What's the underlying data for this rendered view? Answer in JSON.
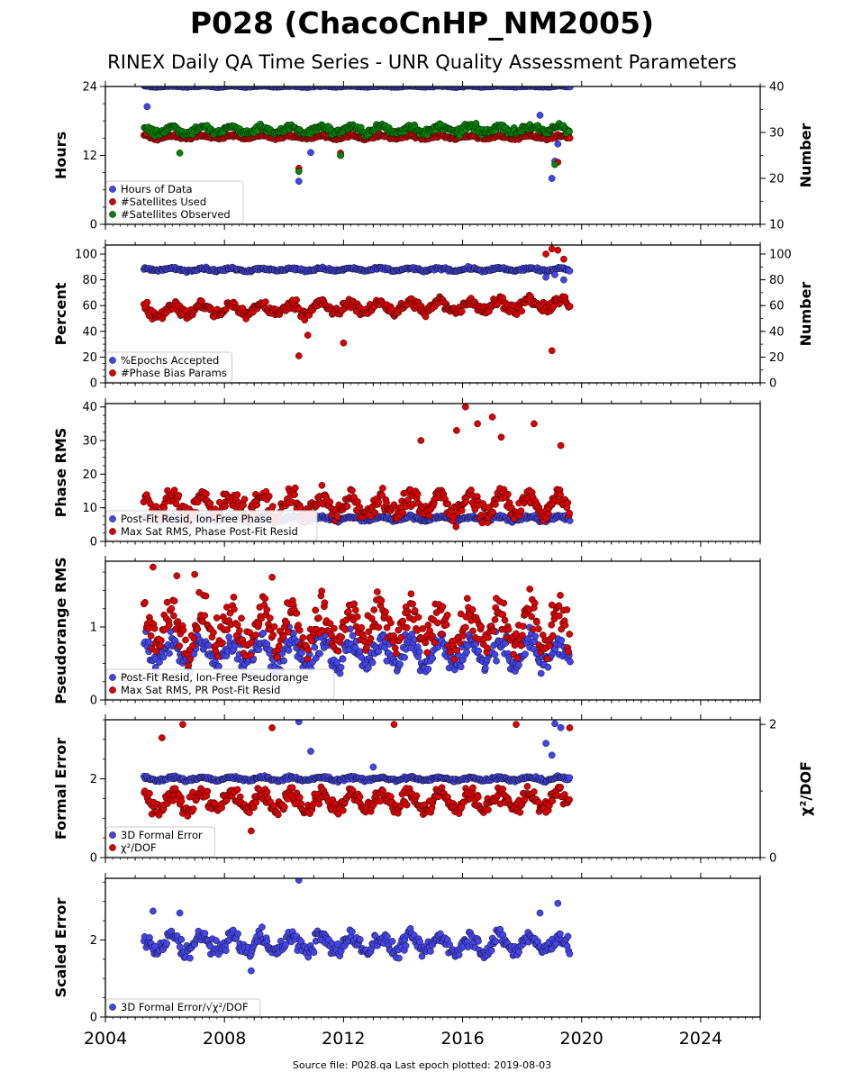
{
  "title": "P028 (ChacoCnHP_NM2005)",
  "subtitle": "RINEX Daily QA Time Series - UNR Quality Assessment Parameters",
  "footer": "Source file: P028.qa Last epoch plotted: 2019-08-03",
  "chart_data": {
    "type": "scatter",
    "x_axis": {
      "range": [
        2004,
        2026
      ],
      "ticks": [
        2004,
        2008,
        2012,
        2016,
        2020,
        2024
      ],
      "unit": "year"
    },
    "data_span": [
      2005.3,
      2019.6
    ],
    "panels": [
      {
        "ylabel": "Hours",
        "yrange": [
          0,
          24
        ],
        "yticks": [
          0,
          12,
          24
        ],
        "ylabel_right": "Number",
        "yrange_right": [
          10,
          40
        ],
        "yticks_right": [
          10,
          20,
          30,
          40
        ],
        "legend": [
          "Hours of Data",
          "#Satellites Used",
          "#Satellites Observed"
        ],
        "series": [
          {
            "name": "Hours of Data",
            "color": "#4444ee",
            "axis": "left",
            "typical": 24,
            "spread": 0.1,
            "trend": 0,
            "outliers": [
              [
                2005.4,
                20.5
              ],
              [
                2010.5,
                7.5
              ],
              [
                2010.9,
                12.5
              ],
              [
                2011.9,
                12
              ],
              [
                2018.6,
                19
              ],
              [
                2019.0,
                8
              ],
              [
                2019.1,
                11
              ],
              [
                2019.3,
                17
              ],
              [
                2019.2,
                14
              ]
            ]
          },
          {
            "name": "#Satellites Used",
            "color": "#dd0000",
            "axis": "right",
            "typical": 29,
            "spread": 0.4,
            "trend": 0,
            "outliers": [
              [
                2005.4,
                29.8
              ],
              [
                2010.5,
                22.2
              ],
              [
                2011.9,
                25.5
              ],
              [
                2019.2,
                23.5
              ]
            ]
          },
          {
            "name": "#Satellites Observed",
            "color": "#008800",
            "axis": "right",
            "typical": 30.5,
            "spread": 0.9,
            "trend": 0.12,
            "outliers": [
              [
                2010.5,
                21.5
              ],
              [
                2011.9,
                25
              ],
              [
                2006.5,
                25.5
              ],
              [
                2019.1,
                23
              ]
            ]
          }
        ]
      },
      {
        "ylabel": "Percent",
        "yrange": [
          0,
          107
        ],
        "yticks": [
          0,
          20,
          40,
          60,
          80,
          100
        ],
        "ylabel_right": "Number",
        "yrange_right": [
          0,
          107
        ],
        "yticks_right": [
          0,
          20,
          40,
          60,
          80,
          100
        ],
        "legend": [
          "%Epochs Accepted",
          "#Phase Bias Params"
        ],
        "series": [
          {
            "name": "%Epochs Accepted",
            "color": "#4444ee",
            "axis": "left",
            "typical": 88,
            "spread": 1.2,
            "trend": 0,
            "outliers": [
              [
                2018.8,
                82
              ],
              [
                2019.1,
                84
              ],
              [
                2019.4,
                80
              ]
            ]
          },
          {
            "name": "#Phase Bias Params",
            "color": "#dd0000",
            "axis": "right",
            "typical": 56,
            "spread": 5,
            "trend": 0.5,
            "outliers": [
              [
                2010.5,
                21
              ],
              [
                2010.8,
                37
              ],
              [
                2012.0,
                31
              ],
              [
                2019.0,
                25
              ],
              [
                2019.0,
                104
              ],
              [
                2019.2,
                103
              ],
              [
                2018.8,
                100
              ],
              [
                2019.4,
                96
              ]
            ]
          }
        ]
      },
      {
        "ylabel": "Phase RMS",
        "yrange": [
          0,
          41
        ],
        "yticks": [
          0,
          10,
          20,
          30,
          40
        ],
        "legend": [
          "Post-Fit Resid, Ion-Free Phase",
          "Max Sat RMS, Phase Post-Fit Resid"
        ],
        "series": [
          {
            "name": "Post-Fit Resid, Ion-Free Phase",
            "color": "#4444ee",
            "axis": "left",
            "typical": 6.8,
            "spread": 0.7,
            "trend": 0,
            "outliers": []
          },
          {
            "name": "Max Sat RMS, Phase Post-Fit Resid",
            "color": "#dd0000",
            "axis": "left",
            "typical": 10.5,
            "spread": 3.5,
            "trend": 0.1,
            "outliers": [
              [
                2016.1,
                40
              ],
              [
                2017.0,
                37
              ],
              [
                2016.5,
                35
              ],
              [
                2015.8,
                33
              ],
              [
                2018.4,
                35
              ],
              [
                2017.3,
                31
              ],
              [
                2014.6,
                30
              ],
              [
                2019.3,
                28.5
              ]
            ]
          }
        ]
      },
      {
        "ylabel": "Pseudorange RMS",
        "yrange": [
          0,
          1.9
        ],
        "yticks": [
          0,
          1
        ],
        "legend": [
          "Post-Fit Resid, Ion-Free Pseudorange",
          "Max Sat RMS, PR Post-Fit Resid"
        ],
        "series": [
          {
            "name": "Post-Fit Resid, Ion-Free Pseudorange",
            "color": "#4444ee",
            "axis": "left",
            "typical": 0.65,
            "spread": 0.2,
            "trend": -0.01,
            "outliers": []
          },
          {
            "name": "Max Sat RMS, PR Post-Fit Resid",
            "color": "#dd0000",
            "axis": "left",
            "typical": 1.0,
            "spread": 0.3,
            "trend": -0.02,
            "outliers": [
              [
                2005.6,
                1.82
              ],
              [
                2006.4,
                1.7
              ],
              [
                2007.0,
                1.72
              ],
              [
                2009.6,
                1.68
              ],
              [
                2019.0,
                1.3
              ]
            ]
          }
        ]
      },
      {
        "ylabel": "Formal Error",
        "yrange": [
          0,
          3.5
        ],
        "yticks": [
          0,
          2
        ],
        "ylabel_right": "χ²/DOF",
        "yrange_right": [
          0,
          2.07
        ],
        "yticks_right": [
          0,
          2
        ],
        "legend": [
          "3D Formal Error",
          "χ²/DOF"
        ],
        "series": [
          {
            "name": "3D Formal Error",
            "color": "#4444ee",
            "axis": "left",
            "typical": 2.0,
            "spread": 0.05,
            "trend": 0,
            "outliers": [
              [
                2010.5,
                3.45
              ],
              [
                2019.1,
                3.4
              ],
              [
                2019.3,
                3.3
              ],
              [
                2018.8,
                2.9
              ],
              [
                2019.0,
                2.6
              ],
              [
                2010.9,
                2.7
              ],
              [
                2013.0,
                2.3
              ]
            ]
          },
          {
            "name": "χ²/DOF",
            "color": "#dd0000",
            "axis": "right",
            "typical": 0.85,
            "spread": 0.15,
            "trend": 0,
            "outliers": [
              [
                2006.6,
                2.0
              ],
              [
                2005.9,
                1.8
              ],
              [
                2009.6,
                1.95
              ],
              [
                2013.7,
                2.0
              ],
              [
                2017.8,
                2.0
              ],
              [
                2019.6,
                1.95
              ],
              [
                2008.9,
                0.4
              ]
            ]
          }
        ]
      },
      {
        "ylabel": "Scaled Error",
        "yrange": [
          0,
          3.6
        ],
        "yticks": [
          0,
          2
        ],
        "legend": [
          "3D Formal Error/√χ²/DOF"
        ],
        "series": [
          {
            "name": "3D Formal Error/√χ²/DOF",
            "color": "#4444ee",
            "axis": "left",
            "typical": 1.9,
            "spread": 0.25,
            "trend": 0,
            "outliers": [
              [
                2010.5,
                3.55
              ],
              [
                2005.6,
                2.75
              ],
              [
                2006.5,
                2.7
              ],
              [
                2019.2,
                2.95
              ],
              [
                2018.6,
                2.7
              ],
              [
                2008.9,
                1.2
              ]
            ]
          }
        ]
      }
    ]
  }
}
